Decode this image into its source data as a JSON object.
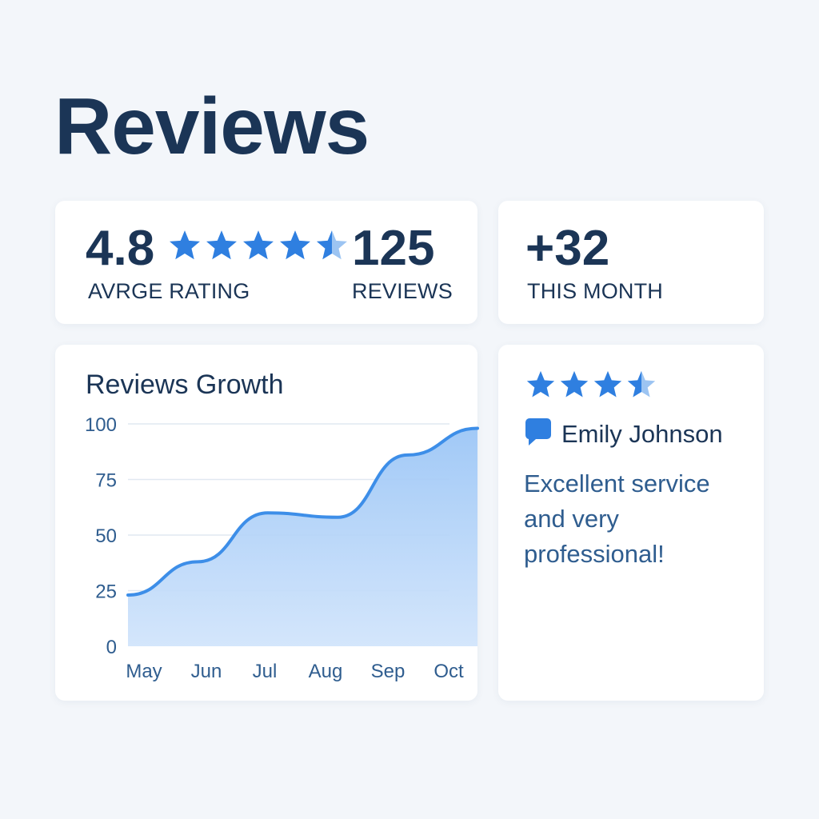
{
  "page": {
    "title": "Reviews"
  },
  "stats": {
    "average_rating": "4.8",
    "average_rating_label": "AVRGE RATING",
    "rating_stars": 4.5,
    "review_count": "125",
    "review_count_label": "REVIEWS",
    "month_delta": "+32",
    "month_label": "THIS MONTH"
  },
  "chart_data": {
    "type": "area",
    "title": "Reviews Growth",
    "categories": [
      "May",
      "Jun",
      "Jul",
      "Aug",
      "Sep",
      "Oct"
    ],
    "x": [
      "May",
      "Jun",
      "Jul",
      "Aug",
      "Sep",
      "Oct"
    ],
    "series": [
      {
        "values": [
          23,
          38,
          60,
          58,
          86,
          98
        ]
      }
    ],
    "ylim": [
      0,
      100
    ],
    "yticks": [
      0,
      25,
      50,
      75,
      100
    ],
    "ytick_labels": [
      "0",
      "25",
      "50",
      "75",
      "100"
    ],
    "grid": true,
    "colors": {
      "line": "#3d8ee8",
      "fill": "#a9cdf7"
    }
  },
  "review": {
    "stars": 3.5,
    "reviewer_name": "Emily Johnson",
    "text": "Excellent service and very professional!",
    "icon": "speech-bubble-icon"
  },
  "colors": {
    "accent": "#2f7fe0",
    "text": "#1b3556",
    "review_text": "#2f5d8f"
  }
}
